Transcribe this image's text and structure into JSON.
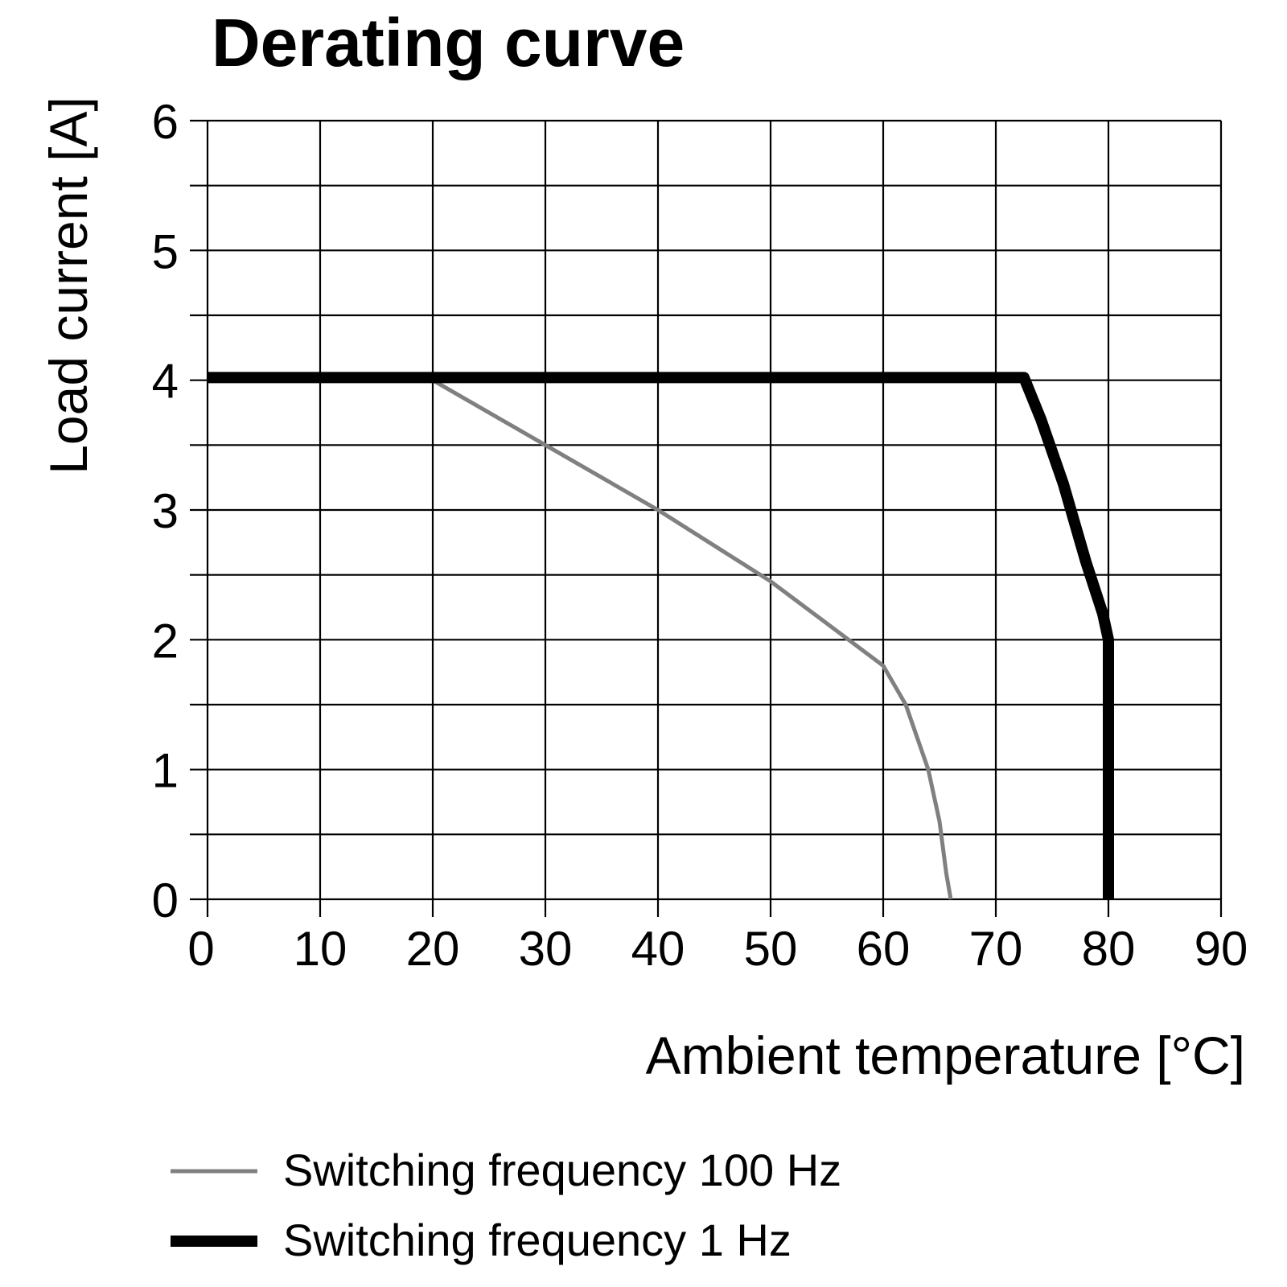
{
  "chart_data": {
    "type": "line",
    "title": "Derating curve",
    "xlabel": "Ambient temperature [°C]",
    "ylabel": "Load current [A]",
    "xlim": [
      0,
      90
    ],
    "ylim": [
      0,
      6
    ],
    "x_ticks": [
      0,
      10,
      20,
      30,
      40,
      50,
      60,
      70,
      80,
      90
    ],
    "y_ticks": [
      0,
      1,
      2,
      3,
      4,
      5,
      6
    ],
    "grid": true,
    "legend_position": "bottom",
    "series": [
      {
        "name": "Switching frequency 100 Hz",
        "color": "#808080",
        "points": [
          [
            0,
            4.0
          ],
          [
            20,
            4.0
          ],
          [
            30,
            3.5
          ],
          [
            40,
            3.0
          ],
          [
            50,
            2.45
          ],
          [
            60,
            1.8
          ],
          [
            62,
            1.5
          ],
          [
            64,
            1.0
          ],
          [
            65,
            0.6
          ],
          [
            65.6,
            0.2
          ],
          [
            66,
            0.0
          ]
        ]
      },
      {
        "name": "Switching frequency 1 Hz",
        "color": "#000000",
        "points": [
          [
            0,
            4.02
          ],
          [
            72.5,
            4.02
          ],
          [
            74,
            3.7
          ],
          [
            76,
            3.2
          ],
          [
            78,
            2.6
          ],
          [
            79.5,
            2.2
          ],
          [
            80,
            2.0
          ],
          [
            80,
            0.0
          ]
        ]
      }
    ]
  }
}
